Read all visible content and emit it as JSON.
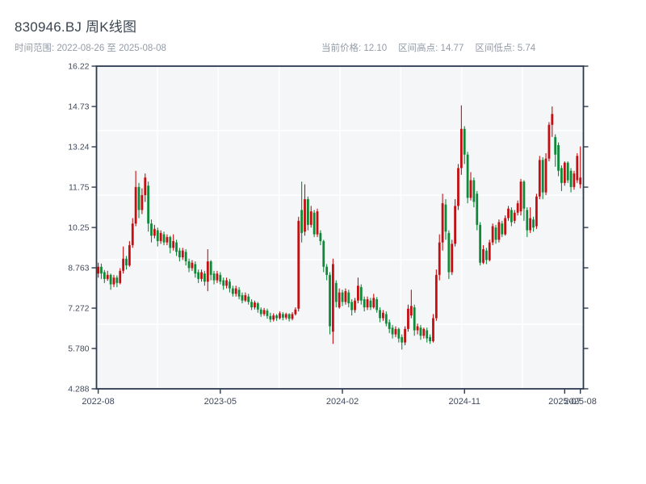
{
  "header": {
    "title": "830946.BJ 周K线图",
    "subtitle_left": "时间范围: 2022-08-26 至 2025-08-08",
    "stats": [
      {
        "label": "当前价格",
        "value": "12.10",
        "text": "当前价格: 12.10"
      },
      {
        "label": "区间高点",
        "value": "14.77",
        "text": "区间高点: 14.77"
      },
      {
        "label": "区间低点",
        "value": "5.74",
        "text": "区间低点: 5.74"
      }
    ]
  },
  "chart_data": {
    "type": "candlestick",
    "symbol": "830946.BJ",
    "period": "weekly",
    "date_range": {
      "start": "2022-08-26",
      "end": "2025-08-08"
    },
    "current_price": 12.1,
    "range_high": 14.77,
    "range_low": 5.74,
    "colors": {
      "up": "#c40f12",
      "down": "#0f8a38",
      "plot_bg": "#f5f6f8",
      "grid": "#ffffff",
      "axis": "#2c3a4e",
      "tick_label": "#3f4a5c"
    },
    "y_axis": {
      "min": 4.288,
      "max": 16.22,
      "tick_labels": [
        "16.22",
        "14.73",
        "13.24",
        "11.75",
        "10.25",
        "8.763",
        "7.272",
        "5.780",
        "4.288"
      ]
    },
    "x_axis": {
      "ticks": [
        {
          "label": "2022-08",
          "index": 0
        },
        {
          "label": "2023-05",
          "index": 39
        },
        {
          "label": "2024-02",
          "index": 78
        },
        {
          "label": "2024-11",
          "index": 117
        },
        {
          "label": "2025-07",
          "index": 149
        },
        {
          "label": "2025-08",
          "index": 154
        }
      ]
    },
    "grid": {
      "h_divisions": 5,
      "v_divisions": 8
    },
    "candles_format": [
      "open",
      "high",
      "low",
      "close"
    ],
    "candles": [
      [
        8.55,
        8.95,
        8.4,
        8.8
      ],
      [
        8.8,
        8.92,
        8.35,
        8.55
      ],
      [
        8.6,
        8.68,
        8.2,
        8.35
      ],
      [
        8.35,
        8.65,
        8.28,
        8.5
      ],
      [
        8.5,
        8.55,
        7.95,
        8.15
      ],
      [
        8.15,
        8.5,
        8.05,
        8.4
      ],
      [
        8.4,
        8.48,
        8.05,
        8.2
      ],
      [
        8.2,
        8.75,
        8.15,
        8.65
      ],
      [
        8.65,
        9.55,
        8.55,
        9.1
      ],
      [
        9.1,
        9.2,
        8.7,
        8.85
      ],
      [
        8.85,
        9.75,
        8.8,
        9.6
      ],
      [
        9.6,
        10.6,
        9.5,
        10.4
      ],
      [
        10.4,
        12.35,
        10.3,
        11.75
      ],
      [
        11.75,
        11.9,
        10.6,
        10.9
      ],
      [
        10.9,
        11.7,
        10.75,
        11.45
      ],
      [
        11.45,
        12.25,
        11.2,
        12.1
      ],
      [
        11.8,
        11.95,
        10.1,
        10.4
      ],
      [
        10.4,
        10.55,
        9.7,
        9.95
      ],
      [
        9.95,
        10.35,
        9.85,
        10.2
      ],
      [
        10.15,
        10.25,
        9.55,
        9.75
      ],
      [
        9.75,
        10.15,
        9.65,
        10.05
      ],
      [
        10.0,
        10.1,
        9.6,
        9.7
      ],
      [
        9.7,
        10.0,
        9.6,
        9.9
      ],
      [
        9.9,
        9.95,
        9.3,
        9.5
      ],
      [
        9.5,
        10.0,
        9.4,
        9.75
      ],
      [
        9.7,
        9.8,
        9.2,
        9.35
      ],
      [
        9.4,
        9.5,
        9.0,
        9.15
      ],
      [
        9.15,
        9.5,
        9.05,
        9.4
      ],
      [
        9.35,
        9.45,
        8.85,
        9.0
      ],
      [
        9.0,
        9.1,
        8.6,
        8.75
      ],
      [
        8.75,
        9.05,
        8.65,
        8.95
      ],
      [
        8.9,
        9.0,
        8.4,
        8.55
      ],
      [
        8.6,
        8.7,
        8.2,
        8.35
      ],
      [
        8.35,
        8.7,
        8.25,
        8.6
      ],
      [
        8.55,
        8.65,
        8.1,
        8.25
      ],
      [
        8.25,
        9.45,
        7.9,
        9.0
      ],
      [
        9.0,
        9.05,
        8.3,
        8.5
      ],
      [
        8.55,
        8.65,
        8.15,
        8.3
      ],
      [
        8.3,
        8.65,
        8.2,
        8.55
      ],
      [
        8.5,
        8.6,
        8.15,
        8.25
      ],
      [
        8.3,
        8.4,
        7.95,
        8.1
      ],
      [
        8.1,
        8.4,
        8.0,
        8.3
      ],
      [
        8.25,
        8.35,
        7.85,
        8.0
      ],
      [
        8.0,
        8.1,
        7.7,
        7.8
      ],
      [
        7.8,
        8.1,
        7.7,
        8.0
      ],
      [
        7.95,
        8.05,
        7.6,
        7.7
      ],
      [
        7.75,
        7.85,
        7.45,
        7.55
      ],
      [
        7.55,
        7.85,
        7.5,
        7.75
      ],
      [
        7.7,
        7.8,
        7.4,
        7.5
      ],
      [
        7.5,
        7.6,
        7.2,
        7.3
      ],
      [
        7.3,
        7.55,
        7.22,
        7.48
      ],
      [
        7.45,
        7.5,
        7.1,
        7.22
      ],
      [
        7.22,
        7.3,
        6.95,
        7.05
      ],
      [
        7.05,
        7.28,
        6.98,
        7.2
      ],
      [
        7.18,
        7.25,
        6.88,
        6.98
      ],
      [
        6.98,
        7.1,
        6.75,
        6.85
      ],
      [
        6.85,
        7.08,
        6.78,
        7.0
      ],
      [
        7.0,
        7.05,
        6.8,
        6.9
      ],
      [
        6.9,
        7.15,
        6.85,
        7.08
      ],
      [
        7.05,
        7.12,
        6.82,
        6.92
      ],
      [
        6.92,
        7.1,
        6.85,
        7.05
      ],
      [
        7.05,
        7.08,
        6.78,
        6.88
      ],
      [
        6.88,
        7.12,
        6.82,
        7.05
      ],
      [
        7.05,
        7.3,
        7.0,
        7.22
      ],
      [
        7.25,
        10.65,
        7.15,
        10.5
      ],
      [
        10.9,
        11.95,
        9.7,
        10.05
      ],
      [
        10.1,
        11.85,
        9.95,
        11.3
      ],
      [
        11.3,
        11.4,
        10.15,
        10.35
      ],
      [
        10.35,
        11.05,
        10.25,
        10.85
      ],
      [
        10.8,
        10.9,
        9.9,
        10.0
      ],
      [
        10.0,
        10.95,
        9.9,
        10.85
      ],
      [
        10.05,
        10.15,
        9.6,
        9.75
      ],
      [
        9.75,
        9.8,
        8.6,
        8.8
      ],
      [
        8.8,
        8.9,
        8.3,
        8.5
      ],
      [
        8.5,
        8.6,
        6.3,
        6.6
      ],
      [
        6.4,
        9.1,
        5.95,
        8.9
      ],
      [
        8.2,
        8.3,
        7.3,
        7.5
      ],
      [
        7.3,
        8.0,
        7.25,
        7.85
      ],
      [
        7.85,
        7.95,
        7.35,
        7.5
      ],
      [
        7.5,
        8.0,
        7.4,
        7.9
      ],
      [
        7.85,
        7.95,
        7.3,
        7.45
      ],
      [
        7.5,
        7.6,
        7.0,
        7.2
      ],
      [
        7.2,
        7.65,
        7.1,
        7.55
      ],
      [
        7.55,
        8.4,
        7.45,
        8.1
      ],
      [
        8.05,
        8.15,
        7.4,
        7.55
      ],
      [
        7.6,
        7.7,
        7.15,
        7.3
      ],
      [
        7.3,
        7.7,
        7.2,
        7.6
      ],
      [
        7.55,
        7.65,
        7.2,
        7.3
      ],
      [
        7.3,
        7.8,
        7.25,
        7.65
      ],
      [
        7.6,
        7.68,
        7.1,
        7.2
      ],
      [
        7.2,
        7.3,
        6.75,
        6.9
      ],
      [
        6.9,
        7.2,
        6.8,
        7.1
      ],
      [
        7.05,
        7.15,
        6.6,
        6.7
      ],
      [
        6.75,
        6.85,
        6.35,
        6.5
      ],
      [
        6.55,
        6.65,
        6.15,
        6.3
      ],
      [
        6.3,
        6.6,
        6.2,
        6.5
      ],
      [
        6.5,
        6.55,
        6.0,
        6.15
      ],
      [
        6.2,
        6.3,
        5.74,
        6.0
      ],
      [
        6.0,
        6.6,
        5.9,
        6.5
      ],
      [
        6.5,
        7.4,
        6.4,
        7.25
      ],
      [
        7.0,
        7.95,
        6.9,
        7.35
      ],
      [
        7.3,
        7.4,
        6.25,
        6.45
      ],
      [
        6.45,
        6.7,
        6.3,
        6.6
      ],
      [
        6.55,
        6.65,
        6.1,
        6.25
      ],
      [
        6.25,
        6.55,
        6.15,
        6.5
      ],
      [
        6.45,
        6.55,
        6.0,
        6.15
      ],
      [
        6.2,
        6.3,
        5.95,
        6.05
      ],
      [
        6.05,
        7.05,
        6.0,
        6.9
      ],
      [
        6.9,
        8.7,
        6.8,
        8.5
      ],
      [
        8.5,
        10.0,
        8.3,
        9.7
      ],
      [
        9.7,
        11.5,
        9.4,
        11.15
      ],
      [
        11.1,
        11.3,
        9.8,
        10.1
      ],
      [
        10.05,
        10.15,
        8.35,
        8.6
      ],
      [
        8.6,
        9.8,
        8.5,
        9.65
      ],
      [
        9.65,
        11.3,
        9.55,
        11.05
      ],
      [
        11.05,
        12.6,
        10.9,
        12.45
      ],
      [
        12.45,
        14.77,
        12.2,
        13.9
      ],
      [
        13.9,
        14.0,
        12.6,
        12.95
      ],
      [
        12.95,
        13.05,
        11.15,
        11.35
      ],
      [
        11.35,
        12.3,
        11.25,
        12.0
      ],
      [
        12.0,
        12.1,
        11.0,
        11.2
      ],
      [
        11.5,
        11.6,
        10.15,
        10.35
      ],
      [
        10.35,
        10.45,
        8.85,
        8.95
      ],
      [
        8.95,
        9.6,
        8.9,
        9.45
      ],
      [
        9.4,
        9.5,
        8.9,
        9.05
      ],
      [
        9.05,
        9.8,
        9.0,
        9.7
      ],
      [
        9.7,
        10.4,
        9.6,
        10.3
      ],
      [
        10.25,
        10.35,
        9.65,
        9.8
      ],
      [
        9.8,
        10.55,
        9.7,
        10.45
      ],
      [
        10.4,
        10.5,
        9.9,
        10.0
      ],
      [
        10.0,
        10.7,
        9.95,
        10.6
      ],
      [
        10.6,
        11.05,
        10.5,
        10.95
      ],
      [
        10.9,
        11.0,
        10.3,
        10.45
      ],
      [
        10.5,
        10.9,
        10.4,
        10.8
      ],
      [
        10.8,
        11.25,
        10.7,
        11.15
      ],
      [
        10.85,
        12.05,
        10.7,
        11.95
      ],
      [
        11.95,
        12.0,
        10.5,
        10.95
      ],
      [
        10.9,
        11.0,
        9.9,
        10.15
      ],
      [
        10.15,
        11.0,
        10.05,
        10.6
      ],
      [
        10.55,
        10.65,
        10.1,
        10.25
      ],
      [
        10.3,
        11.5,
        10.2,
        11.4
      ],
      [
        11.4,
        12.9,
        11.3,
        12.75
      ],
      [
        12.75,
        12.85,
        11.3,
        11.55
      ],
      [
        11.55,
        13.0,
        11.45,
        12.8
      ],
      [
        12.8,
        14.15,
        12.7,
        14.05
      ],
      [
        14.05,
        14.73,
        13.6,
        14.45
      ],
      [
        13.6,
        13.7,
        12.5,
        12.95
      ],
      [
        13.3,
        13.4,
        12.15,
        12.35
      ],
      [
        12.45,
        12.55,
        11.6,
        11.9
      ],
      [
        11.9,
        12.7,
        11.8,
        12.65
      ],
      [
        12.65,
        12.7,
        11.9,
        12.0
      ],
      [
        12.35,
        12.45,
        11.55,
        11.75
      ],
      [
        11.75,
        12.35,
        11.65,
        12.25
      ],
      [
        12.0,
        13.0,
        11.9,
        12.9
      ],
      [
        11.85,
        13.25,
        11.7,
        12.1
      ]
    ]
  }
}
